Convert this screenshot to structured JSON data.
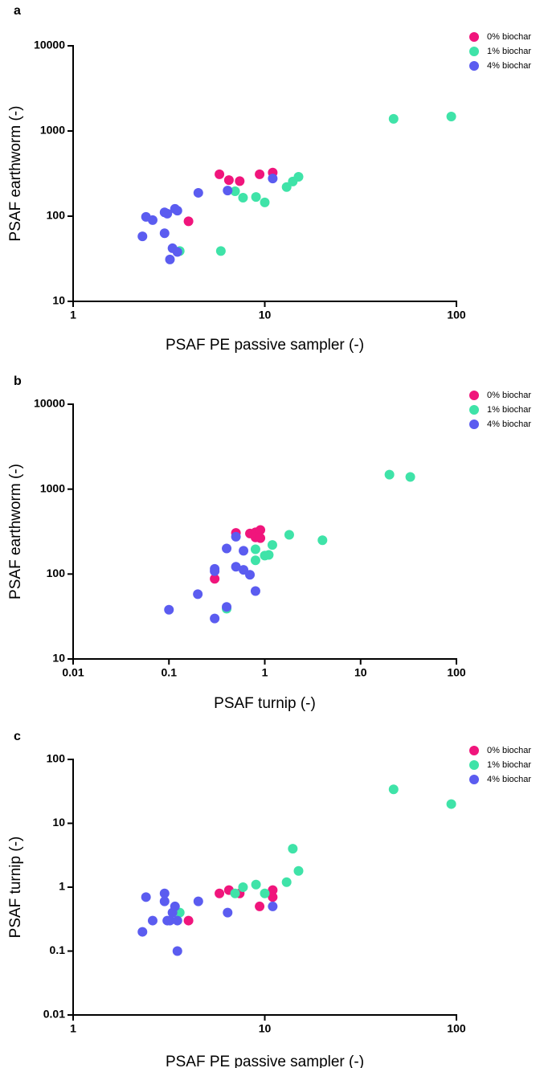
{
  "chart_data": [
    {
      "type": "scatter",
      "panel_label": "a",
      "x_label": "PSAF PE passive sampler (-)",
      "y_label": "PSAF earthworm (-)",
      "xscale": "log",
      "yscale": "log",
      "xlim": [
        1,
        100
      ],
      "ylim": [
        10,
        10000
      ],
      "xticks": [
        1,
        10,
        100
      ],
      "yticks": [
        10,
        100,
        1000,
        10000
      ],
      "legend": "top-right",
      "series": [
        {
          "name": "0% biochar",
          "color": "#f0157c",
          "x": [
            5.8,
            6.5,
            7.4,
            9.4,
            11,
            4.0
          ],
          "values": [
            310,
            265,
            258,
            310,
            325,
            87
          ]
        },
        {
          "name": "1% biochar",
          "color": "#3fe3a8",
          "x": [
            7.0,
            7.7,
            9.0,
            10,
            13,
            14,
            15,
            5.9,
            3.6,
            47,
            94
          ],
          "values": [
            196,
            165,
            168,
            145,
            220,
            255,
            290,
            39,
            39,
            1390,
            1480
          ]
        },
        {
          "name": "4% biochar",
          "color": "#5b5cf0",
          "x": [
            2.4,
            2.6,
            2.3,
            3.0,
            3.1,
            3.0,
            3.4,
            3.5,
            3.3,
            3.5,
            3.2,
            4.5,
            6.4,
            11
          ],
          "values": [
            98,
            90,
            58,
            111,
            107,
            63,
            122,
            116,
            42,
            38,
            31,
            188,
            200,
            277
          ]
        }
      ]
    },
    {
      "type": "scatter",
      "panel_label": "b",
      "x_label": "PSAF turnip (-)",
      "y_label": "PSAF earthworm (-)",
      "xscale": "log",
      "yscale": "log",
      "xlim": [
        0.01,
        100
      ],
      "ylim": [
        10,
        10000
      ],
      "xticks": [
        0.01,
        0.1,
        1,
        10,
        100
      ],
      "yticks": [
        10,
        100,
        1000,
        10000
      ],
      "legend": "top-right",
      "series": [
        {
          "name": "0% biochar",
          "color": "#f0157c",
          "x": [
            0.3,
            0.5,
            0.7,
            0.8,
            0.9,
            0.8,
            0.9
          ],
          "values": [
            88,
            305,
            300,
            310,
            330,
            270,
            265
          ]
        },
        {
          "name": "1% biochar",
          "color": "#3fe3a8",
          "x": [
            0.4,
            0.8,
            0.8,
            1.0,
            1.1,
            1.2,
            1.8,
            4.0,
            20,
            33
          ],
          "values": [
            39,
            196,
            145,
            165,
            168,
            220,
            290,
            250,
            1480,
            1390
          ]
        },
        {
          "name": "4% biochar",
          "color": "#5b5cf0",
          "x": [
            0.1,
            0.2,
            0.3,
            0.3,
            0.3,
            0.4,
            0.4,
            0.5,
            0.5,
            0.6,
            0.6,
            0.7,
            0.8
          ],
          "values": [
            38,
            58,
            30,
            108,
            115,
            41,
            200,
            122,
            275,
            188,
            112,
            98,
            63
          ]
        }
      ]
    },
    {
      "type": "scatter",
      "panel_label": "c",
      "x_label": "PSAF PE passive sampler (-)",
      "y_label": "PSAF turnip (-)",
      "xscale": "log",
      "yscale": "log",
      "xlim": [
        1,
        100
      ],
      "ylim": [
        0.01,
        100
      ],
      "xticks": [
        1,
        10,
        100
      ],
      "yticks": [
        0.01,
        0.1,
        1,
        10,
        100
      ],
      "legend": "top-right",
      "series": [
        {
          "name": "0% biochar",
          "color": "#f0157c",
          "x": [
            5.8,
            6.5,
            7.4,
            9.4,
            11,
            11,
            4.0
          ],
          "values": [
            0.8,
            0.9,
            0.8,
            0.5,
            0.9,
            0.7,
            0.3
          ]
        },
        {
          "name": "1% biochar",
          "color": "#3fe3a8",
          "x": [
            3.6,
            7.0,
            7.7,
            9.0,
            10,
            13,
            14,
            15,
            47,
            94
          ],
          "values": [
            0.4,
            0.8,
            1.0,
            1.1,
            0.8,
            1.2,
            4.0,
            1.8,
            34,
            20
          ]
        },
        {
          "name": "4% biochar",
          "color": "#5b5cf0",
          "x": [
            2.3,
            2.4,
            2.6,
            3.0,
            3.0,
            3.1,
            3.2,
            3.3,
            3.4,
            3.5,
            3.5,
            4.5,
            6.4,
            11
          ],
          "values": [
            0.2,
            0.7,
            0.3,
            0.8,
            0.6,
            0.3,
            0.3,
            0.4,
            0.5,
            0.3,
            0.1,
            0.6,
            0.4,
            0.5
          ]
        }
      ]
    }
  ]
}
